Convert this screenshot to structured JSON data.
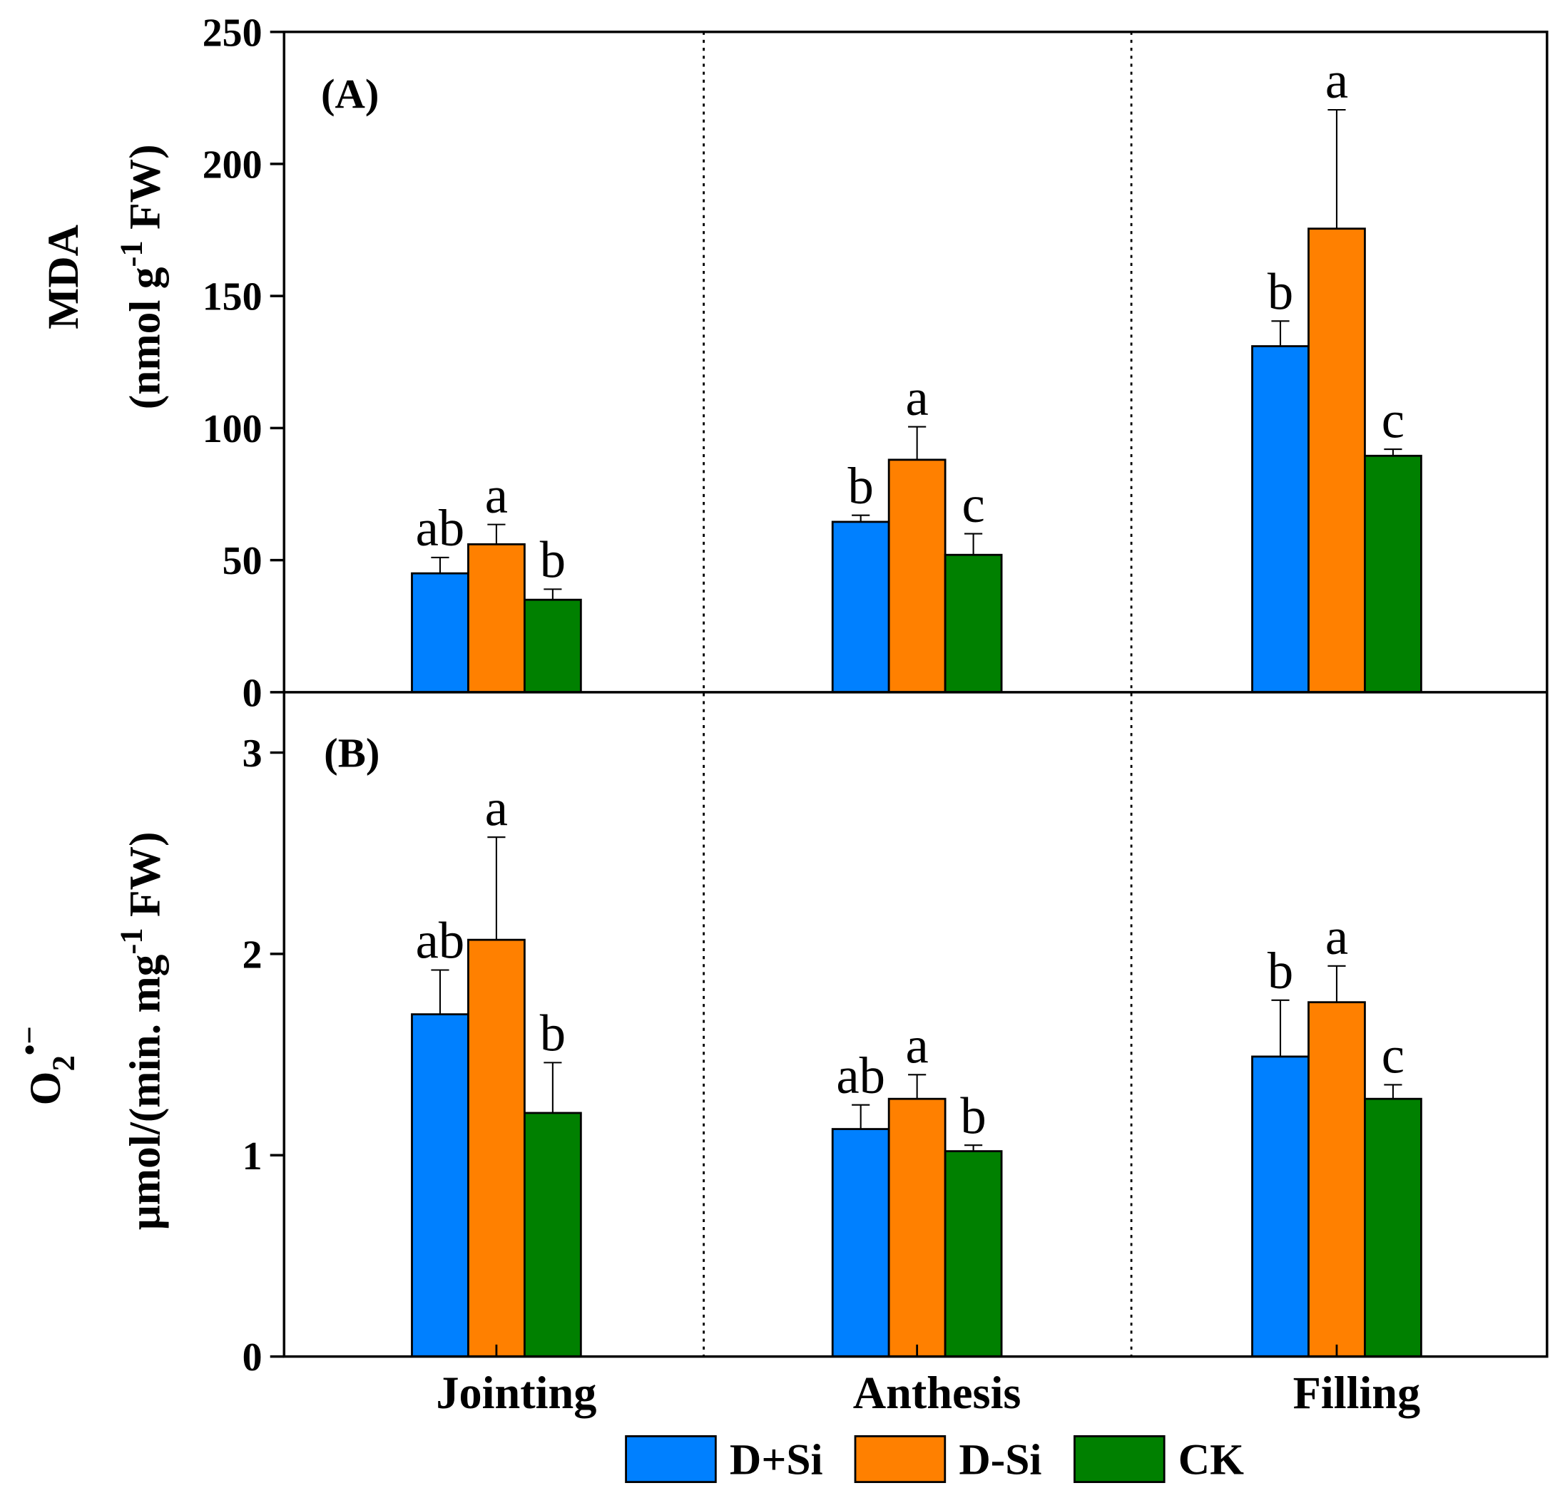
{
  "chart_data": [
    {
      "type": "bar",
      "panel_label": "(A)",
      "ylabel_main": "MDA",
      "ylabel_unit": {
        "pre": "(nmol g",
        "sup": "-1",
        "post": " FW)"
      },
      "ylim": [
        0,
        250
      ],
      "yticks": [
        0,
        50,
        100,
        150,
        200,
        250
      ],
      "categories": [
        "Jointing",
        "Anthesis",
        "Filling"
      ],
      "series": [
        {
          "name": "D+Si",
          "color": "#0080FF",
          "values": [
            45,
            64.5,
            131
          ],
          "errors": [
            6,
            2.5,
            9.5
          ],
          "letters": [
            "ab",
            "b",
            "b"
          ]
        },
        {
          "name": "D-Si",
          "color": "#FF8000",
          "values": [
            56,
            88,
            175.5
          ],
          "errors": [
            7.5,
            12.5,
            45
          ],
          "letters": [
            "a",
            "a",
            "a"
          ]
        },
        {
          "name": "CK",
          "color": "#008000",
          "values": [
            35,
            52,
            89.5
          ],
          "errors": [
            4,
            8,
            2.5
          ],
          "letters": [
            "b",
            "c",
            "c"
          ]
        }
      ]
    },
    {
      "type": "bar",
      "panel_label": "(B)",
      "ylabel_main": {
        "base": "O",
        "sub": "2",
        "sup": "•−"
      },
      "ylabel_unit": {
        "pre": "μmol/(min. mg",
        "sup": "-1",
        "post": " FW)"
      },
      "ylim": [
        0,
        3.3
      ],
      "yticks": [
        0,
        1,
        2,
        3
      ],
      "categories": [
        "Jointing",
        "Anthesis",
        "Filling"
      ],
      "series": [
        {
          "name": "D+Si",
          "color": "#0080FF",
          "values": [
            1.7,
            1.13,
            1.49
          ],
          "errors": [
            0.22,
            0.12,
            0.28
          ],
          "letters": [
            "ab",
            "ab",
            "b"
          ]
        },
        {
          "name": "D-Si",
          "color": "#FF8000",
          "values": [
            2.07,
            1.28,
            1.76
          ],
          "errors": [
            0.51,
            0.12,
            0.18
          ],
          "letters": [
            "a",
            "a",
            "a"
          ]
        },
        {
          "name": "CK",
          "color": "#008000",
          "values": [
            1.21,
            1.02,
            1.28
          ],
          "errors": [
            0.25,
            0.03,
            0.07
          ],
          "letters": [
            "b",
            "b",
            "c"
          ]
        }
      ]
    }
  ],
  "legend": [
    "D+Si",
    "D-Si",
    "CK"
  ]
}
